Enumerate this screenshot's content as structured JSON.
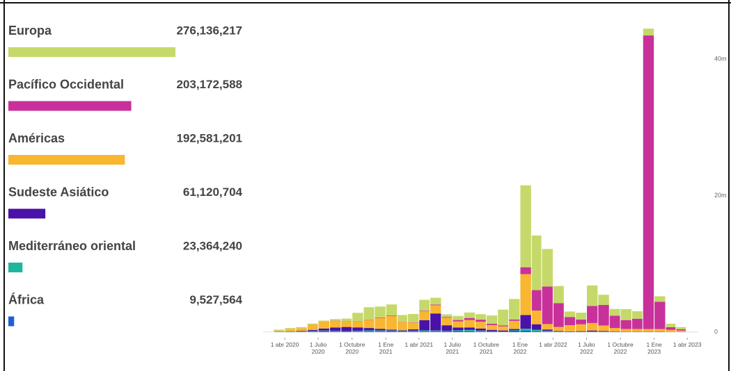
{
  "chart_data": {
    "type": "bar",
    "stacked": true,
    "x": [
      "2020-02-01",
      "2020-03-01",
      "2020-04-01",
      "2020-05-01",
      "2020-06-01",
      "2020-07-01",
      "2020-08-01",
      "2020-09-01",
      "2020-10-01",
      "2020-11-01",
      "2020-12-01",
      "2021-01-01",
      "2021-02-01",
      "2021-03-01",
      "2021-04-01",
      "2021-05-01",
      "2021-06-01",
      "2021-07-01",
      "2021-08-01",
      "2021-09-01",
      "2021-10-01",
      "2021-11-01",
      "2021-12-01",
      "2022-01-01",
      "2022-02-01",
      "2022-03-01",
      "2022-04-01",
      "2022-05-01",
      "2022-06-01",
      "2022-07-01",
      "2022-08-01",
      "2022-09-01",
      "2022-10-01",
      "2022-11-01",
      "2022-12-01",
      "2023-01-01",
      "2023-02-01",
      "2023-03-01"
    ],
    "series": [
      {
        "name": "Europa",
        "color": "#c5d96a",
        "total": 276136217,
        "total_label": "276,136,217",
        "values": [
          10000,
          200000,
          250000,
          150000,
          120000,
          150000,
          200000,
          400000,
          1200000,
          1800000,
          1600000,
          1600000,
          1000000,
          1200000,
          1600000,
          1000000,
          400000,
          600000,
          800000,
          800000,
          1200000,
          2300000,
          3000000,
          12000000,
          8000000,
          5500000,
          2500000,
          800000,
          1000000,
          3000000,
          1500000,
          1000000,
          1600000,
          1100000,
          1000000,
          800000,
          500000,
          300000
        ]
      },
      {
        "name": "Pacífico Occidental",
        "color": "#c8319a",
        "total": 203172588,
        "total_label": "203,172,588",
        "values": [
          20000,
          10000,
          10000,
          10000,
          10000,
          20000,
          30000,
          30000,
          30000,
          40000,
          60000,
          80000,
          40000,
          50000,
          80000,
          100000,
          100000,
          200000,
          300000,
          300000,
          200000,
          150000,
          200000,
          1000000,
          3000000,
          5500000,
          3500000,
          1200000,
          700000,
          2500000,
          3000000,
          1800000,
          1300000,
          1500000,
          43000000,
          4000000,
          400000,
          200000
        ]
      },
      {
        "name": "Américas",
        "color": "#f9b630",
        "total": 192581201,
        "total_label": "192,581,201",
        "values": [
          0,
          100000,
          250000,
          400000,
          800000,
          1000000,
          1000000,
          800000,
          900000,
          1200000,
          1600000,
          2000000,
          1200000,
          1000000,
          1300000,
          1200000,
          1100000,
          900000,
          1100000,
          1000000,
          700000,
          600000,
          1200000,
          6000000,
          2000000,
          800000,
          600000,
          900000,
          1000000,
          1100000,
          800000,
          500000,
          400000,
          400000,
          400000,
          400000,
          300000,
          200000
        ]
      },
      {
        "name": "Sudeste Asiático",
        "color": "#4a12a8",
        "total": 61120704,
        "total_label": "61,120,704",
        "values": [
          0,
          10000,
          30000,
          70000,
          150000,
          300000,
          500000,
          600000,
          500000,
          350000,
          250000,
          150000,
          100000,
          200000,
          1500000,
          2500000,
          800000,
          400000,
          350000,
          300000,
          200000,
          150000,
          150000,
          2000000,
          800000,
          200000,
          80000,
          50000,
          80000,
          150000,
          100000,
          50000,
          30000,
          30000,
          20000,
          20000,
          10000,
          10000
        ]
      },
      {
        "name": "Mediterráneo oriental",
        "color": "#1fb6a0",
        "total": 23364240,
        "total_label": "23,364,240",
        "values": [
          0,
          30000,
          50000,
          80000,
          120000,
          120000,
          100000,
          100000,
          150000,
          200000,
          150000,
          120000,
          100000,
          150000,
          200000,
          180000,
          100000,
          120000,
          200000,
          150000,
          80000,
          50000,
          50000,
          300000,
          300000,
          150000,
          50000,
          30000,
          30000,
          50000,
          50000,
          30000,
          20000,
          20000,
          20000,
          20000,
          10000,
          10000
        ]
      },
      {
        "name": "África",
        "color": "#1f5fd6",
        "total": 9527564,
        "total_label": "9,527,564",
        "values": [
          0,
          10000,
          10000,
          20000,
          50000,
          100000,
          80000,
          50000,
          40000,
          50000,
          80000,
          100000,
          60000,
          50000,
          50000,
          50000,
          100000,
          150000,
          120000,
          70000,
          50000,
          40000,
          250000,
          200000,
          50000,
          30000,
          20000,
          30000,
          30000,
          30000,
          20000,
          10000,
          10000,
          10000,
          10000,
          10000,
          10000,
          10000
        ]
      }
    ],
    "xlim": [
      "2020-01-01",
      "2023-05-01"
    ],
    "xticks": [
      {
        "value": "2020-04-01",
        "label": "1 abr 2020"
      },
      {
        "value": "2020-07-01",
        "label": "1 Julio 2020"
      },
      {
        "value": "2020-10-01",
        "label": "1 Octubre 2020"
      },
      {
        "value": "2021-01-01",
        "label": "1 Ene 2021"
      },
      {
        "value": "2021-04-01",
        "label": "1 abr 2021"
      },
      {
        "value": "2021-07-01",
        "label": "1 Julio 2021"
      },
      {
        "value": "2021-10-01",
        "label": "1 Octubre 2021"
      },
      {
        "value": "2022-01-01",
        "label": "1 Ene 2022"
      },
      {
        "value": "2022-04-01",
        "label": "1 abr 2022"
      },
      {
        "value": "2022-07-01",
        "label": "1 Julio 2022"
      },
      {
        "value": "2022-10-01",
        "label": "1 Octubre 2022"
      },
      {
        "value": "2023-01-01",
        "label": "1 Ene 2023"
      },
      {
        "value": "2023-04-01",
        "label": "1 abr 2023"
      }
    ],
    "ylim": [
      0,
      46000000
    ],
    "yticks": [
      0,
      {
        "value": 20000000,
        "label": "20m"
      },
      {
        "value": 40000000,
        "label": "40m"
      }
    ]
  }
}
